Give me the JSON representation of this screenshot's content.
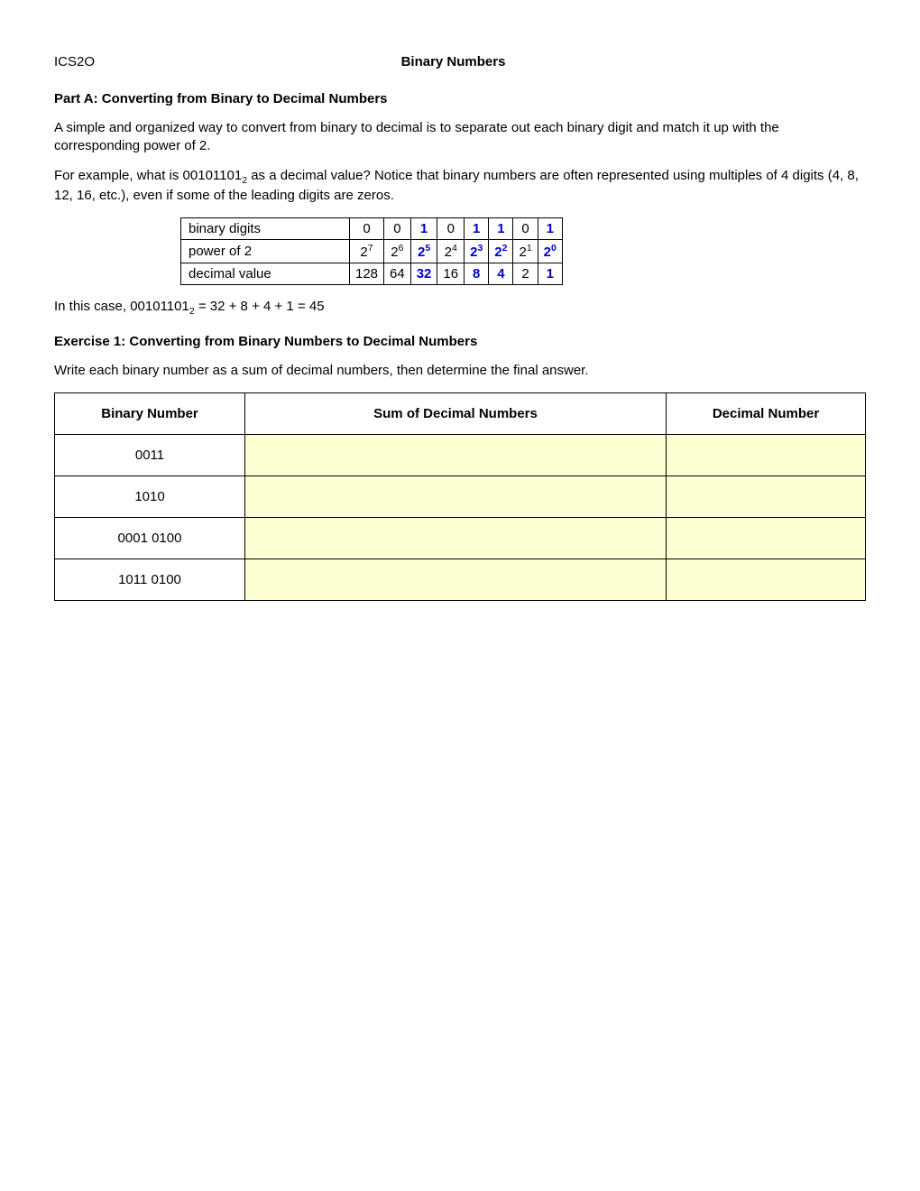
{
  "header": {
    "course_code": "ICS2O",
    "page_title": "Binary Numbers"
  },
  "partA": {
    "title": "Part A: Converting from Binary to Decimal Numbers",
    "intro": "A simple and organized way to convert from binary to decimal is to separate out each binary digit and match it up with the corresponding power of 2.",
    "example_lead": "For example, what is 00101101",
    "example_sub": "2",
    "example_tail": " as a decimal value?  Notice that binary numbers are often represented using multiples of 4 digits (4, 8, 12, 16, etc.), even if some of the leading digits are zeros."
  },
  "example_table": {
    "row_labels": [
      "binary digits",
      "power of 2",
      "decimal value"
    ],
    "binary_digits": [
      "0",
      "0",
      "1",
      "0",
      "1",
      "1",
      "0",
      "1"
    ],
    "power_base": "2",
    "power_exp": [
      "7",
      "6",
      "5",
      "4",
      "3",
      "2",
      "1",
      "0"
    ],
    "decimal_values": [
      "128",
      "64",
      "32",
      "16",
      "8",
      "4",
      "2",
      "1"
    ],
    "highlight_cols": [
      false,
      false,
      true,
      false,
      true,
      true,
      false,
      true
    ],
    "colors": {
      "highlight": "#0000cc",
      "normal": "#000000"
    }
  },
  "conclusion": {
    "lead": "In this case,  00101101",
    "sub": "2",
    "tail": " = 32 + 8 + 4 + 1 = 45"
  },
  "exercise1": {
    "title": "Exercise 1: Converting from Binary Numbers to Decimal Numbers",
    "instruction": "Write each binary number as a sum of decimal numbers, then determine the final answer.",
    "headers": [
      "Binary Number",
      "Sum of Decimal Numbers",
      "Decimal Number"
    ],
    "rows": [
      {
        "binary": "0011",
        "sum": "",
        "decimal": ""
      },
      {
        "binary": "1010",
        "sum": "",
        "decimal": ""
      },
      {
        "binary": "0001 0100",
        "sum": "",
        "decimal": ""
      },
      {
        "binary": "1011 0100",
        "sum": "",
        "decimal": ""
      }
    ],
    "fill_bg": "#feffd2"
  }
}
